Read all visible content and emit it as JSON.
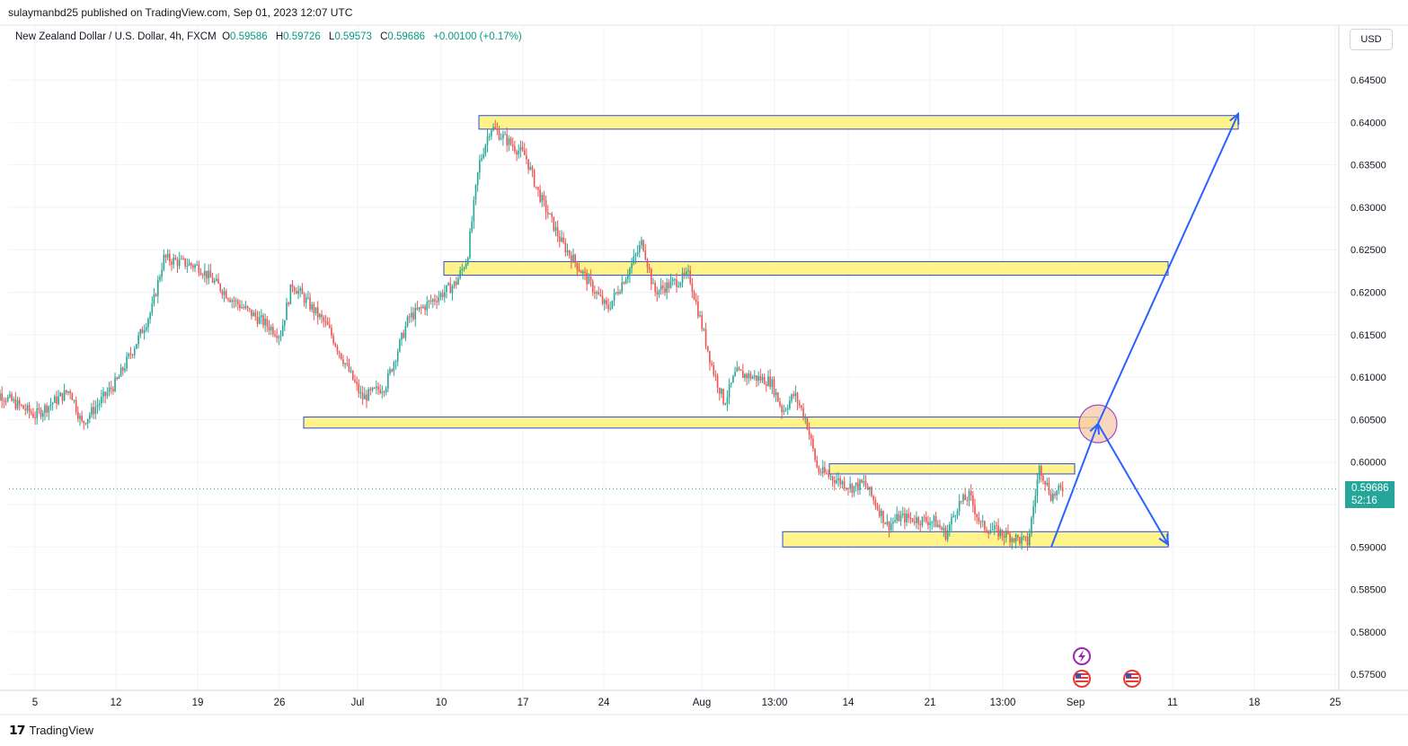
{
  "header": {
    "published": "sulaymanbd25 published on TradingView.com, Sep 01, 2023 12:07 UTC"
  },
  "legend": {
    "symbol": "New Zealand Dollar / U.S. Dollar, 4h, FXCM",
    "o_label": "O",
    "o_value": "0.59586",
    "h_label": "H",
    "h_value": "0.59726",
    "l_label": "L",
    "l_value": "0.59573",
    "c_label": "C",
    "c_value": "0.59686",
    "change": "+0.00100 (+0.17%)"
  },
  "currency_button": "USD",
  "price_tag": {
    "price": "0.59686",
    "countdown": "52:16"
  },
  "brand": "TradingView",
  "colors": {
    "up": "#26a69a",
    "down": "#ef5350",
    "zone_fill": "#fff38a",
    "zone_border": "#2a4bd7",
    "arrow": "#2962ff",
    "circle_fill": "#f6c9a8",
    "circle_border": "#9c4dcc"
  },
  "chart_data": {
    "type": "candlestick",
    "title": "New Zealand Dollar / U.S. Dollar, 4h, FXCM",
    "y_axis": {
      "ylim": [
        0.5735,
        0.6495
      ],
      "ticks": [
        "0.64500",
        "0.64000",
        "0.63500",
        "0.63000",
        "0.62500",
        "0.62000",
        "0.61500",
        "0.61000",
        "0.60500",
        "0.60000",
        "0.59500",
        "0.59000",
        "0.58500",
        "0.58000",
        "0.57500"
      ]
    },
    "x_axis": {
      "ticks": [
        "5",
        "12",
        "19",
        "26",
        "Jul",
        "10",
        "17",
        "24",
        "Aug",
        "13:00",
        "14",
        "21",
        "13:00",
        "Sep",
        "11",
        "18",
        "25"
      ]
    },
    "grid": true,
    "current_price": 0.59686,
    "price_path": [
      {
        "date": "2023-06-01",
        "close": 0.606
      },
      {
        "date": "2023-06-02",
        "close": 0.608
      },
      {
        "date": "2023-06-05",
        "close": 0.6055
      },
      {
        "date": "2023-06-08",
        "close": 0.6085
      },
      {
        "date": "2023-06-09",
        "close": 0.6045
      },
      {
        "date": "2023-06-12",
        "close": 0.6095
      },
      {
        "date": "2023-06-14",
        "close": 0.615
      },
      {
        "date": "2023-06-15",
        "close": 0.618
      },
      {
        "date": "2023-06-16",
        "close": 0.624
      },
      {
        "date": "2023-06-19",
        "close": 0.623
      },
      {
        "date": "2023-06-22",
        "close": 0.619
      },
      {
        "date": "2023-06-26",
        "close": 0.615
      },
      {
        "date": "2023-06-27",
        "close": 0.621
      },
      {
        "date": "2023-06-30",
        "close": 0.616
      },
      {
        "date": "2023-07-03",
        "close": 0.6075
      },
      {
        "date": "2023-07-05",
        "close": 0.609
      },
      {
        "date": "2023-07-07",
        "close": 0.617
      },
      {
        "date": "2023-07-10",
        "close": 0.62
      },
      {
        "date": "2023-07-11",
        "close": 0.621
      },
      {
        "date": "2023-07-12",
        "close": 0.624
      },
      {
        "date": "2023-07-13",
        "close": 0.635
      },
      {
        "date": "2023-07-14",
        "close": 0.6395
      },
      {
        "date": "2023-07-17",
        "close": 0.636
      },
      {
        "date": "2023-07-18",
        "close": 0.632
      },
      {
        "date": "2023-07-20",
        "close": 0.626
      },
      {
        "date": "2023-07-21",
        "close": 0.624
      },
      {
        "date": "2023-07-24",
        "close": 0.618
      },
      {
        "date": "2023-07-26",
        "close": 0.623
      },
      {
        "date": "2023-07-27",
        "close": 0.626
      },
      {
        "date": "2023-07-28",
        "close": 0.62
      },
      {
        "date": "2023-07-31",
        "close": 0.622
      },
      {
        "date": "2023-08-02",
        "close": 0.611
      },
      {
        "date": "2023-08-03",
        "close": 0.607
      },
      {
        "date": "2023-08-04",
        "close": 0.6105
      },
      {
        "date": "2023-08-07",
        "close": 0.6095
      },
      {
        "date": "2023-08-08",
        "close": 0.606
      },
      {
        "date": "2023-08-09",
        "close": 0.608
      },
      {
        "date": "2023-08-10",
        "close": 0.605
      },
      {
        "date": "2023-08-11",
        "close": 0.599
      },
      {
        "date": "2023-08-14",
        "close": 0.597
      },
      {
        "date": "2023-08-15",
        "close": 0.5975
      },
      {
        "date": "2023-08-17",
        "close": 0.5925
      },
      {
        "date": "2023-08-18",
        "close": 0.5935
      },
      {
        "date": "2023-08-21",
        "close": 0.593
      },
      {
        "date": "2023-08-22",
        "close": 0.5915
      },
      {
        "date": "2023-08-23",
        "close": 0.595
      },
      {
        "date": "2023-08-24",
        "close": 0.596
      },
      {
        "date": "2023-08-25",
        "close": 0.5925
      },
      {
        "date": "2023-08-28",
        "close": 0.591
      },
      {
        "date": "2023-08-29",
        "close": 0.5905
      },
      {
        "date": "2023-08-30",
        "close": 0.5995
      },
      {
        "date": "2023-08-31",
        "close": 0.596
      },
      {
        "date": "2023-09-01",
        "close": 0.59686
      }
    ],
    "zones": [
      {
        "price_low": 0.6392,
        "price_high": 0.6408,
        "from": "2023-07-13",
        "to": "2023-09-16"
      },
      {
        "price_low": 0.622,
        "price_high": 0.6236,
        "from": "2023-07-10",
        "to": "2023-09-10"
      },
      {
        "price_low": 0.604,
        "price_high": 0.6053,
        "from": "2023-06-28",
        "to": "2023-09-04"
      },
      {
        "price_low": 0.5986,
        "price_high": 0.5998,
        "from": "2023-08-12",
        "to": "2023-09-02"
      },
      {
        "price_low": 0.59,
        "price_high": 0.5918,
        "from": "2023-08-08",
        "to": "2023-09-10"
      }
    ],
    "projection": [
      {
        "date": "2023-08-31",
        "price": 0.59
      },
      {
        "date": "2023-09-04",
        "price": 0.6045
      },
      {
        "date": "2023-09-16",
        "price": 0.641
      }
    ],
    "projection_alt": [
      {
        "date": "2023-09-04",
        "price": 0.6045
      },
      {
        "date": "2023-09-10",
        "price": 0.5903
      }
    ]
  }
}
